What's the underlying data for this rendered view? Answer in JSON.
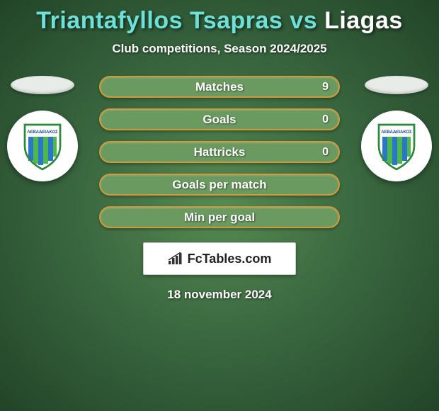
{
  "header": {
    "player1": "Triantafyllos Tsapras",
    "vs": "vs",
    "player2": "Liagas",
    "player1_color": "#6de0d8",
    "player2_color": "#ffffff",
    "subtitle": "Club competitions, Season 2024/2025"
  },
  "player_ellipse": {
    "left_color": "#e8ece8",
    "right_color": "#e8ece8"
  },
  "club_badge": {
    "bg_color": "#ffffff",
    "shield_border": "#2a8a3a",
    "shield_top": "#ffffff",
    "shield_text": "ΛΕΒΑΔΕΙΑΚΟΣ",
    "stripe_blue": "#2a77c9",
    "stripe_green": "#4fb84a"
  },
  "stats": {
    "row_bg": "#6a9a5f",
    "row_border": "#d09a3a",
    "rows": [
      {
        "label": "Matches",
        "left": "",
        "right": "9"
      },
      {
        "label": "Goals",
        "left": "",
        "right": "0"
      },
      {
        "label": "Hattricks",
        "left": "",
        "right": "0"
      },
      {
        "label": "Goals per match",
        "left": "",
        "right": ""
      },
      {
        "label": "Min per goal",
        "left": "",
        "right": ""
      }
    ]
  },
  "watermark": {
    "text": "FcTables.com"
  },
  "date": "18 november 2024"
}
